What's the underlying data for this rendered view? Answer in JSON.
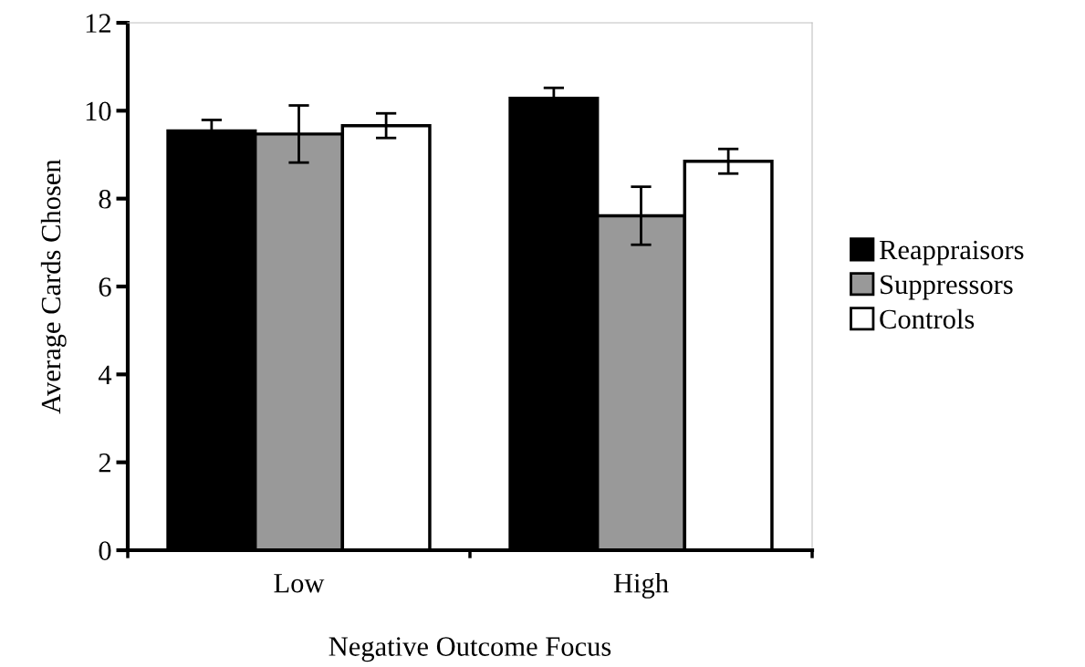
{
  "chart_data": {
    "type": "bar",
    "xlabel": "Negative Outcome Focus",
    "ylabel": "Average Cards Chosen",
    "categories": [
      "Low",
      "High"
    ],
    "series": [
      {
        "name": "Reappraisors",
        "color": "#000000",
        "values": [
          9.54,
          10.28
        ],
        "errors": [
          0.25,
          0.24
        ]
      },
      {
        "name": "Suppressors",
        "color": "#999999",
        "values": [
          9.47,
          7.61
        ],
        "errors": [
          0.65,
          0.66
        ]
      },
      {
        "name": "Controls",
        "color": "#ffffff",
        "values": [
          9.66,
          8.85
        ],
        "errors": [
          0.28,
          0.28
        ]
      }
    ],
    "ylim": [
      0,
      12
    ],
    "yticks": [
      0,
      2,
      4,
      6,
      8,
      10,
      12
    ],
    "grid": false,
    "legend": "right"
  }
}
